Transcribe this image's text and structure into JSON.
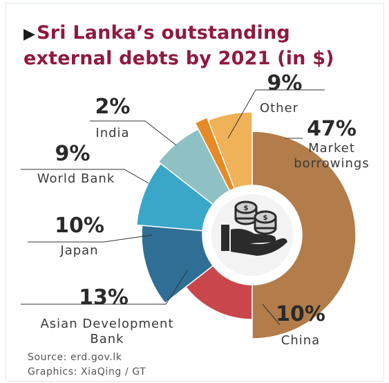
{
  "title_arrow": "▶",
  "title": "Sri Lanka’s outstanding external debts by 2021 (in $)",
  "source": "Source: erd.gov.lk",
  "graphics": "Graphics: XiaQing / GT",
  "center_icon": "money-hand-icon",
  "colors": {
    "title": "#8e1b3d",
    "Market borrowings": "#b27d4a",
    "China": "#c9474b",
    "Asian Development Bank": "#2f6f96",
    "Japan": "#3aa7c9",
    "World Bank": "#8fc0c3",
    "India": "#e68a26",
    "Other": "#efb258"
  },
  "chart_data": {
    "type": "pie",
    "style": "radial (rose) donut",
    "unit": "%",
    "slices": [
      {
        "name": "Market borrowings",
        "value": 47,
        "label": "47%"
      },
      {
        "name": "China",
        "value": 10,
        "label": "10%"
      },
      {
        "name": "Asian Development Bank",
        "value": 13,
        "label": "13%"
      },
      {
        "name": "Japan",
        "value": 10,
        "label": "10%"
      },
      {
        "name": "World Bank",
        "value": 9,
        "label": "9%"
      },
      {
        "name": "India",
        "value": 2,
        "label": "2%"
      },
      {
        "name": "Other",
        "value": 9,
        "label": "9%"
      }
    ],
    "slice_labels": [
      [
        "Market",
        "borrowings"
      ],
      [
        "China"
      ],
      [
        "Asian Development",
        "Bank"
      ],
      [
        "Japan"
      ],
      [
        "World Bank"
      ],
      [
        "India"
      ],
      [
        "Other"
      ]
    ]
  }
}
